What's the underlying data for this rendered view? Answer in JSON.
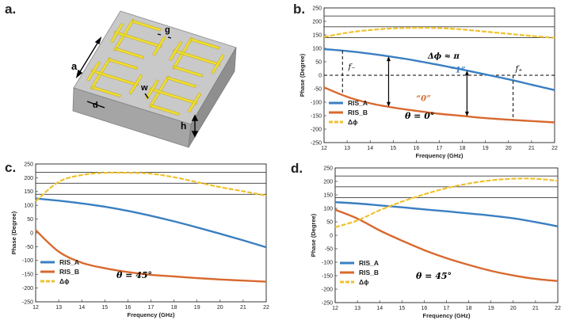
{
  "panels": {
    "a": "a.",
    "b": "b.",
    "c": "c.",
    "d": "d."
  },
  "unit_cell": {
    "label_a": "a",
    "label_d": "d",
    "label_g": "g",
    "label_w": "w",
    "label_h": "h",
    "colors": {
      "substrate_top": "#c9c9c9",
      "substrate_side": "#9e9e9e",
      "metal": "#f2df30",
      "metal_edge": "#b7a313"
    }
  },
  "colors": {
    "RIS_A": "#3a7fc2",
    "RIS_B": "#d8692e",
    "dphi": "#f0c12c",
    "ref_line": "#3a3a3a"
  },
  "chart_data": [
    {
      "type": "line",
      "panel": "b",
      "xlabel": "Frequency (GHz)",
      "ylabel": "Phase (Degree)",
      "xlim": [
        12,
        22
      ],
      "ylim": [
        -250,
        250
      ],
      "xticks": [
        12,
        13,
        14,
        15,
        16,
        17,
        18,
        19,
        20,
        21,
        22
      ],
      "yticks": [
        250,
        200,
        150,
        100,
        50,
        0,
        -50,
        -100,
        -150,
        -200,
        -250
      ],
      "ref_lines": [
        220,
        180,
        140
      ],
      "zero_dashed": true,
      "x": [
        12,
        13,
        14,
        15,
        16,
        17,
        18,
        19,
        20,
        21,
        22
      ],
      "series": [
        {
          "name": "RIS_A",
          "values": [
            97,
            90,
            80,
            68,
            54,
            38,
            21,
            3,
            -15,
            -35,
            -55
          ]
        },
        {
          "name": "RIS_B",
          "values": [
            -45,
            -80,
            -104,
            -120,
            -132,
            -143,
            -151,
            -159,
            -165,
            -170,
            -175
          ]
        },
        {
          "name": "Δϕ",
          "values": [
            142,
            158,
            168,
            174,
            176,
            175,
            170,
            162,
            154,
            146,
            139
          ]
        }
      ],
      "legend": [
        "RIS_A",
        "RIS_B",
        "Δϕ"
      ],
      "legend_position": "bottom-left",
      "theta_label": "θ = 0°",
      "annotations": {
        "delta": "Δϕ ≈ π",
        "one": "“1”",
        "zero": "“0”",
        "fminus": "f₋",
        "fplus": "f₊"
      },
      "markers_x": {
        "fminus": 12.8,
        "arrow1": 14.8,
        "arrow2": 18.2,
        "fplus": 20.2
      }
    },
    {
      "type": "line",
      "panel": "c",
      "xlabel": "Frequency (GHz)",
      "ylabel": "Phase (Degree)",
      "xlim": [
        12,
        22
      ],
      "ylim": [
        -250,
        250
      ],
      "xticks": [
        12,
        13,
        14,
        15,
        16,
        17,
        18,
        19,
        20,
        21,
        22
      ],
      "yticks": [
        250,
        200,
        150,
        100,
        50,
        0,
        -50,
        -100,
        -150,
        -200,
        -250
      ],
      "ref_lines": [
        220,
        180,
        140
      ],
      "zero_dashed": false,
      "x": [
        12,
        13,
        14,
        15,
        16,
        17,
        18,
        19,
        20,
        21,
        22
      ],
      "series": [
        {
          "name": "RIS_A",
          "values": [
            125,
            117,
            107,
            95,
            80,
            62,
            42,
            20,
            -3,
            -27,
            -52
          ]
        },
        {
          "name": "RIS_B",
          "values": [
            10,
            -68,
            -108,
            -128,
            -142,
            -152,
            -158,
            -164,
            -169,
            -173,
            -177
          ]
        },
        {
          "name": "Δϕ",
          "values": [
            115,
            185,
            210,
            218,
            218,
            215,
            202,
            184,
            166,
            151,
            135
          ]
        }
      ],
      "legend": [
        "RIS_A",
        "RIS_B",
        "Δϕ"
      ],
      "legend_position": "bottom-left",
      "theta_label": "θ = 45°"
    },
    {
      "type": "line",
      "panel": "d",
      "xlabel": "Frequency (GHz)",
      "ylabel": "Phase (Degree)",
      "xlim": [
        12,
        22
      ],
      "ylim": [
        -250,
        250
      ],
      "xticks": [
        12,
        13,
        14,
        15,
        16,
        17,
        18,
        19,
        20,
        21,
        22
      ],
      "yticks": [
        250,
        200,
        150,
        100,
        50,
        0,
        -50,
        -100,
        -150,
        -200,
        -250
      ],
      "ref_lines": [
        220,
        180,
        140
      ],
      "zero_dashed": false,
      "x": [
        12,
        13,
        14,
        15,
        16,
        17,
        18,
        19,
        20,
        21,
        22
      ],
      "series": [
        {
          "name": "RIS_A",
          "values": [
            123,
            118,
            111,
            104,
            96,
            89,
            81,
            73,
            63,
            49,
            33
          ]
        },
        {
          "name": "RIS_B",
          "values": [
            95,
            62,
            18,
            -20,
            -55,
            -85,
            -110,
            -132,
            -149,
            -162,
            -170
          ]
        },
        {
          "name": "Δϕ",
          "values": [
            30,
            55,
            93,
            125,
            152,
            175,
            192,
            204,
            210,
            210,
            202
          ]
        }
      ],
      "legend": [
        "RIS_A",
        "RIS_B",
        "Δϕ"
      ],
      "legend_position": "bottom-left",
      "theta_label": "θ = 45°"
    }
  ]
}
